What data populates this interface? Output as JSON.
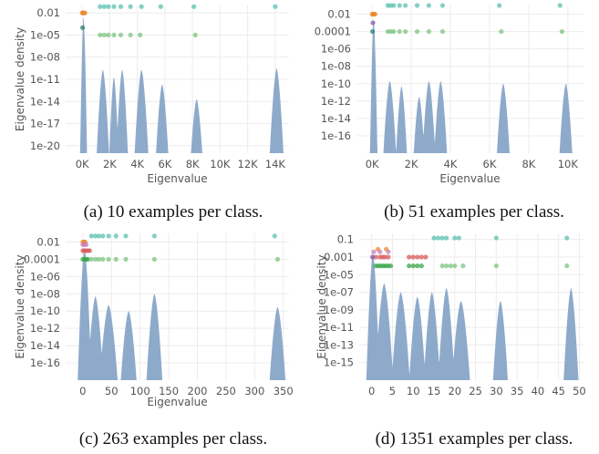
{
  "chart_data": [
    {
      "type": "area",
      "caption": "(a) 10 examples per class.",
      "xlabel": "Eigenvalue",
      "ylabel": "Eigenvalue density",
      "y_scale": "log",
      "x_ticks": [
        0,
        2000,
        4000,
        6000,
        8000,
        10000,
        12000,
        14000
      ],
      "x_tick_labels": [
        "0K",
        "2K",
        "4K",
        "6K",
        "8K",
        "10K",
        "12K",
        "14K"
      ],
      "y_ticks": [
        0.01,
        1e-05,
        1e-08,
        1e-11,
        1e-14,
        1e-17,
        1e-20
      ],
      "y_tick_labels": [
        "0.01",
        "1e-05",
        "1e-08",
        "1e-11",
        "1e-14",
        "1e-17",
        "1e-20"
      ],
      "xlim": [
        -1200,
        15000
      ],
      "ylim": [
        1e-21,
        0.1
      ],
      "grid": true,
      "density_color": "#8eaacb",
      "density_bumps": [
        {
          "center": 100,
          "peak": 0.003,
          "halfwidth": 250
        },
        {
          "center": 1500,
          "peak": 2e-10,
          "halfwidth": 450
        },
        {
          "center": 2300,
          "peak": 2e-11,
          "halfwidth": 330
        },
        {
          "center": 2900,
          "peak": 2e-10,
          "halfwidth": 420
        },
        {
          "center": 4300,
          "peak": 2e-10,
          "halfwidth": 500
        },
        {
          "center": 5800,
          "peak": 2e-12,
          "halfwidth": 450
        },
        {
          "center": 8300,
          "peak": 2e-14,
          "halfwidth": 420
        },
        {
          "center": 14100,
          "peak": 3e-10,
          "halfwidth": 500
        }
      ],
      "outlier_series": [
        {
          "color": "#e98a2d",
          "y": 0.01,
          "x": [
            0,
            60,
            130,
            200
          ]
        },
        {
          "color": "#2e7f75",
          "y": 0.0001,
          "x": [
            30
          ]
        },
        {
          "color": "#7cc47d",
          "y": 1e-05,
          "x": [
            1300,
            1600,
            1900,
            2300,
            2800,
            3500,
            4200,
            8200
          ]
        },
        {
          "color": "#5bc0b0",
          "y": 0.07,
          "x": [
            1300,
            1600,
            1900,
            2300,
            2800,
            3500,
            4300,
            5700,
            8100,
            14000
          ]
        }
      ]
    },
    {
      "type": "area",
      "caption": "(b) 51 examples per class.",
      "xlabel": "Eigenvalue",
      "ylabel": "",
      "y_scale": "log",
      "x_ticks": [
        0,
        2000,
        4000,
        6000,
        8000,
        10000
      ],
      "x_tick_labels": [
        "0K",
        "2K",
        "4K",
        "6K",
        "8K",
        "10K"
      ],
      "y_ticks": [
        0.01,
        0.0001,
        1e-06,
        1e-08,
        1e-10,
        1e-12,
        1e-14,
        1e-16
      ],
      "y_tick_labels": [
        "0.01",
        "0.0001",
        "1e-06",
        "1e-08",
        "1e-10",
        "1e-12",
        "1e-14",
        "1e-16"
      ],
      "xlim": [
        -800,
        10800
      ],
      "ylim": [
        1e-18,
        0.1
      ],
      "grid": true,
      "density_color": "#8eaacb",
      "density_bumps": [
        {
          "center": 80,
          "peak": 0.003,
          "halfwidth": 190
        },
        {
          "center": 900,
          "peak": 2e-10,
          "halfwidth": 330
        },
        {
          "center": 1500,
          "peak": 5e-11,
          "halfwidth": 280
        },
        {
          "center": 2400,
          "peak": 3e-12,
          "halfwidth": 280
        },
        {
          "center": 2900,
          "peak": 2e-10,
          "halfwidth": 330
        },
        {
          "center": 3500,
          "peak": 2e-10,
          "halfwidth": 330
        },
        {
          "center": 6700,
          "peak": 1e-10,
          "halfwidth": 330
        },
        {
          "center": 9900,
          "peak": 1e-10,
          "halfwidth": 330
        }
      ],
      "outlier_series": [
        {
          "color": "#e98a2d",
          "y": 0.01,
          "x": [
            0,
            50,
            100,
            150
          ]
        },
        {
          "color": "#8a5aa8",
          "y": 0.001,
          "x": [
            40
          ]
        },
        {
          "color": "#2e7f75",
          "y": 0.0001,
          "x": [
            20
          ]
        },
        {
          "color": "#7cc47d",
          "y": 0.0001,
          "x": [
            800,
            950,
            1100,
            1400,
            1700,
            2300,
            2900,
            3600,
            6600,
            9700
          ]
        },
        {
          "color": "#5bc0b0",
          "y": 0.1,
          "x": [
            800,
            950,
            1100,
            1400,
            1700,
            2300,
            2900,
            3600,
            6500,
            9600
          ]
        }
      ]
    },
    {
      "type": "area",
      "caption": "(c) 263 examples per class.",
      "xlabel": "Eigenvalue",
      "ylabel": "Eigenvalue density",
      "y_scale": "log",
      "x_ticks": [
        0,
        50,
        100,
        150,
        200,
        250,
        300,
        350
      ],
      "x_tick_labels": [
        "0",
        "50",
        "100",
        "150",
        "200",
        "250",
        "300",
        "350"
      ],
      "y_ticks": [
        0.01,
        0.0001,
        1e-06,
        1e-08,
        1e-10,
        1e-12,
        1e-14,
        1e-16
      ],
      "y_tick_labels": [
        "0.01",
        "0.0001",
        "1e-06",
        "1e-08",
        "1e-10",
        "1e-12",
        "1e-14",
        "1e-16"
      ],
      "xlim": [
        -30,
        360
      ],
      "ylim": [
        1e-18,
        0.1
      ],
      "grid": true,
      "density_color": "#8eaacb",
      "density_bumps": [
        {
          "center": 3,
          "peak": 0.002,
          "halfwidth": 12
        },
        {
          "center": 22,
          "peak": 5e-09,
          "halfwidth": 14
        },
        {
          "center": 45,
          "peak": 5e-10,
          "halfwidth": 16
        },
        {
          "center": 80,
          "peak": 1e-10,
          "halfwidth": 14
        },
        {
          "center": 125,
          "peak": 1e-08,
          "halfwidth": 14
        },
        {
          "center": 340,
          "peak": 3e-10,
          "halfwidth": 14
        }
      ],
      "outlier_series": [
        {
          "color": "#e98a2d",
          "y": 0.01,
          "x": [
            0,
            2,
            4
          ]
        },
        {
          "color": "#c87db8",
          "y": 0.005,
          "x": [
            0,
            3,
            6
          ]
        },
        {
          "color": "#d85b5b",
          "y": 0.001,
          "x": [
            0,
            3,
            6,
            9,
            12
          ]
        },
        {
          "color": "#3aa54a",
          "y": 0.0001,
          "x": [
            0,
            3,
            6,
            9
          ]
        },
        {
          "color": "#7cc47d",
          "y": 0.0001,
          "x": [
            15,
            22,
            28,
            35,
            45,
            58,
            75,
            125,
            340
          ]
        },
        {
          "color": "#5bc0b0",
          "y": 0.05,
          "x": [
            15,
            22,
            28,
            35,
            45,
            58,
            75,
            125,
            335
          ]
        }
      ]
    },
    {
      "type": "area",
      "caption": "(d) 1351 examples per class.",
      "xlabel": "",
      "ylabel": "Eigenvalue density",
      "y_scale": "log",
      "x_ticks": [
        0,
        5,
        10,
        15,
        20,
        25,
        30,
        35,
        40,
        45,
        50
      ],
      "x_tick_labels": [
        "0",
        "5",
        "10",
        "15",
        "20",
        "25",
        "30",
        "35",
        "40",
        "45",
        "50"
      ],
      "y_ticks": [
        0.1,
        0.001,
        1e-05,
        1e-07,
        1e-09,
        1e-11,
        1e-13,
        1e-15
      ],
      "y_tick_labels": [
        "0.1",
        "0.001",
        "1e-05",
        "1e-07",
        "1e-09",
        "1e-11",
        "1e-13",
        "1e-15"
      ],
      "xlim": [
        -3,
        51
      ],
      "ylim": [
        1e-17,
        0.5
      ],
      "grid": true,
      "density_color": "#8eaacb",
      "density_bumps": [
        {
          "center": 0.3,
          "peak": 0.003,
          "halfwidth": 1.6
        },
        {
          "center": 3,
          "peak": 1e-06,
          "halfwidth": 2.2
        },
        {
          "center": 7,
          "peak": 1e-07,
          "halfwidth": 2.2
        },
        {
          "center": 11,
          "peak": 3e-08,
          "halfwidth": 2
        },
        {
          "center": 14.5,
          "peak": 1e-07,
          "halfwidth": 2
        },
        {
          "center": 18,
          "peak": 3e-07,
          "halfwidth": 2
        },
        {
          "center": 21.5,
          "peak": 1e-08,
          "halfwidth": 2.2
        },
        {
          "center": 31,
          "peak": 1e-08,
          "halfwidth": 1.8
        },
        {
          "center": 48,
          "peak": 3e-07,
          "halfwidth": 1.8
        }
      ],
      "outlier_series": [
        {
          "color": "#e98a2d",
          "y": 0.008,
          "x": [
            1.5,
            3.5
          ]
        },
        {
          "color": "#c87db8",
          "y": 0.004,
          "x": [
            0.5,
            2,
            4
          ]
        },
        {
          "color": "#d85b5b",
          "y": 0.001,
          "x": [
            1,
            2,
            2.6,
            3.2,
            4,
            9,
            10,
            11,
            12,
            13
          ]
        },
        {
          "color": "#8a5aa8",
          "y": 0.001,
          "x": [
            0.2
          ]
        },
        {
          "color": "#3aa54a",
          "y": 0.0001,
          "x": [
            1,
            1.6,
            2.2,
            2.8,
            3.4,
            4,
            4.6,
            9,
            10,
            11,
            12
          ]
        },
        {
          "color": "#7cc47d",
          "y": 0.0001,
          "x": [
            17,
            18,
            19,
            20,
            22,
            30,
            47
          ]
        },
        {
          "color": "#5bc0b0",
          "y": 0.15,
          "x": [
            15,
            16,
            17,
            18,
            20,
            21,
            30,
            47
          ]
        }
      ]
    }
  ]
}
